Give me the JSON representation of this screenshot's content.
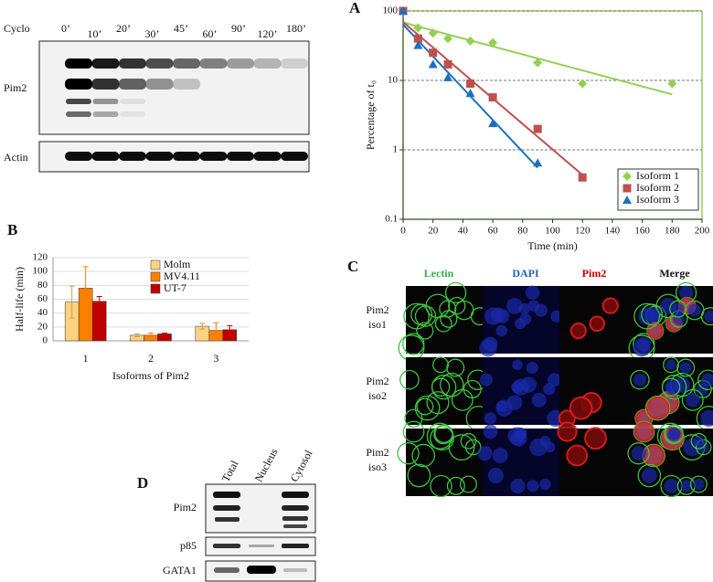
{
  "figure": {
    "blot_top": {
      "label": "Cyclo",
      "times": [
        "0’",
        "10’",
        "20’",
        "30’",
        "45’",
        "60’",
        "90’",
        "120’",
        "180’"
      ],
      "rows": [
        "Pim2",
        "Actin"
      ]
    },
    "panel_c": {
      "label": "C",
      "columns": [
        "Lectin",
        "DAPI",
        "Pim2",
        "Merge"
      ],
      "rows": [
        [
          "Pim2",
          "iso1"
        ],
        [
          "Pim2",
          "iso2"
        ],
        [
          "Pim2",
          "iso3"
        ]
      ]
    },
    "panel_d": {
      "label": "D",
      "columns": [
        "Total",
        "Nucleus",
        "Cytosol"
      ],
      "rows": [
        "Pim2",
        "p85",
        "GATA1"
      ]
    }
  },
  "chart_data": [
    {
      "type": "scatter",
      "panel": "A",
      "xlabel": "Time (min)",
      "ylabel": "Percentage of t₀",
      "xlim": [
        0,
        200
      ],
      "xticks": [
        0,
        20,
        40,
        60,
        80,
        100,
        120,
        140,
        160,
        180,
        200
      ],
      "ylim": [
        0.1,
        100
      ],
      "yticks": [
        0.1,
        1,
        10,
        100
      ],
      "log_y": true,
      "grid": true,
      "frame_color": "#92d050",
      "trend_lines": true,
      "legend": "lower right",
      "series": [
        {
          "name": "Isoform 1",
          "color": "#92d050",
          "marker": "diamond",
          "x": [
            0,
            10,
            20,
            30,
            45,
            60,
            90,
            120,
            180
          ],
          "values": [
            100,
            57,
            48,
            40,
            37,
            35,
            18,
            9,
            9
          ]
        },
        {
          "name": "Isoform 2",
          "color": "#c0504d",
          "marker": "square",
          "x": [
            0,
            10,
            20,
            30,
            45,
            60,
            90,
            120
          ],
          "values": [
            100,
            40,
            25,
            17,
            9,
            5.7,
            2,
            0.4
          ]
        },
        {
          "name": "Isoform 3",
          "color": "#1f6fc0",
          "marker": "triangle",
          "x": [
            0,
            10,
            20,
            30,
            45,
            60,
            90
          ],
          "values": [
            100,
            32,
            17,
            11,
            6.5,
            2.4,
            0.65
          ]
        }
      ]
    },
    {
      "type": "bar",
      "panel": "B",
      "xlabel": "Isoforms of Pim2",
      "ylabel": "Half-life (min)",
      "categories": [
        "1",
        "2",
        "3"
      ],
      "ylim": [
        0,
        120
      ],
      "yticks": [
        0,
        20,
        40,
        60,
        80,
        100,
        120
      ],
      "grid": true,
      "legend": "upper center",
      "series": [
        {
          "name": "Molm",
          "color": "#ffd27f",
          "values": [
            56,
            8,
            21
          ],
          "errors": [
            23,
            2,
            4
          ]
        },
        {
          "name": "MV4.11",
          "color": "#ff7f00",
          "values": [
            76,
            8,
            15
          ],
          "errors": [
            31,
            3,
            11
          ]
        },
        {
          "name": "UT-7",
          "color": "#c00000",
          "values": [
            57,
            10,
            16
          ],
          "errors": [
            7,
            1,
            6
          ]
        }
      ]
    }
  ]
}
